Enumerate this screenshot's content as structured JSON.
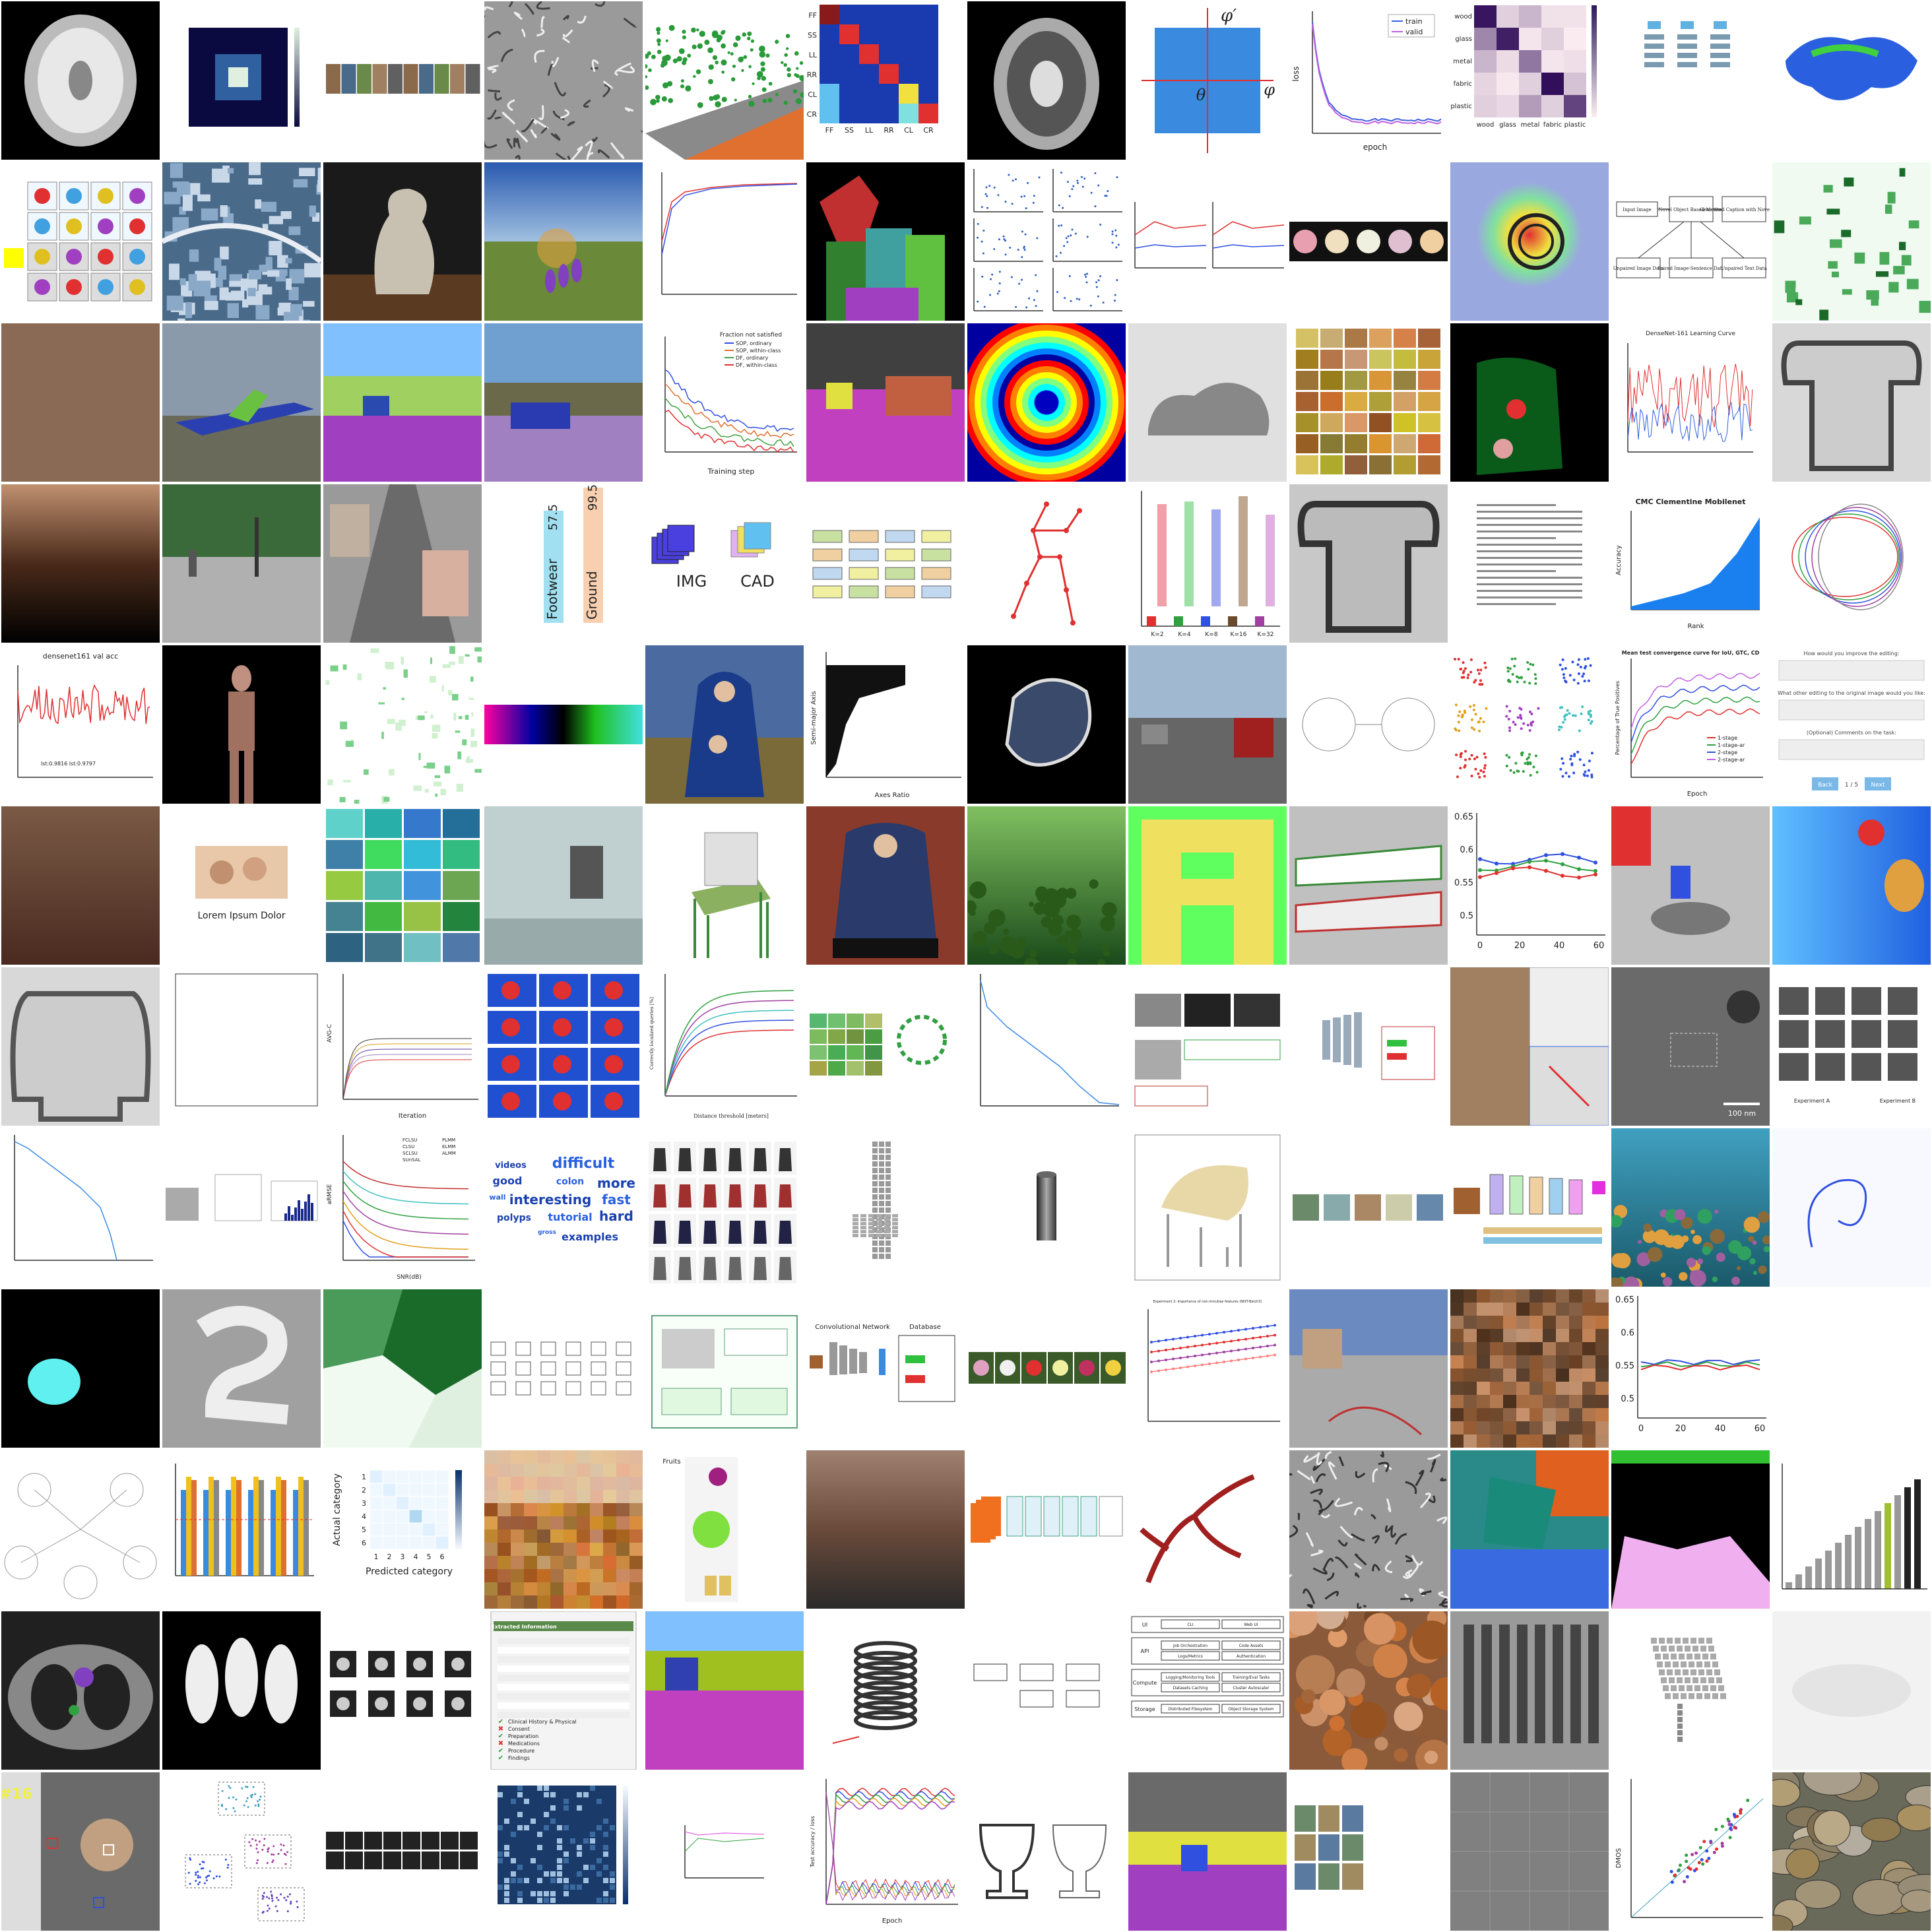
{
  "grid": {
    "columns": 12,
    "rows": 12
  },
  "tiles": [
    {
      "kind": "brain-mri-segmented",
      "bg": "#000000"
    },
    {
      "kind": "heatmap-small",
      "bg": "#ffffff"
    },
    {
      "kind": "image-strip",
      "bg": "#ffffff"
    },
    {
      "kind": "texture-gray",
      "bg": "#9a9a9a"
    },
    {
      "kind": "point-cloud-street",
      "bg": "#ffffff"
    },
    {
      "kind": "confusion-matrix",
      "bg": "#ffffff",
      "labels": [
        "FF",
        "SS",
        "LL",
        "RR",
        "CL",
        "CR"
      ]
    },
    {
      "kind": "brain-mri",
      "bg": "#000000"
    },
    {
      "kind": "axis-diagram",
      "bg": "#ffffff",
      "labels": [
        "φ′",
        "θ",
        "φ"
      ]
    },
    {
      "kind": "loss-curve",
      "bg": "#ffffff",
      "legend": [
        "train",
        "valid"
      ],
      "xlabel": "epoch",
      "ylabel": "loss"
    },
    {
      "kind": "confusion-matrix-materials",
      "bg": "#ffffff",
      "labels": [
        "wood",
        "glass",
        "metal",
        "fabric",
        "plastic"
      ]
    },
    {
      "kind": "diagram-small",
      "bg": "#ffffff"
    },
    {
      "kind": "3d-blob-blue",
      "bg": "#ffffff"
    },
    {
      "kind": "medical-panels",
      "bg": "#ffffff"
    },
    {
      "kind": "aerial-city",
      "bg": "#4a6a8a"
    },
    {
      "kind": "statue-photo",
      "bg": "#1a1a1a"
    },
    {
      "kind": "landscape-flower",
      "bg": "#5a8ad0"
    },
    {
      "kind": "rank-curve",
      "bg": "#ffffff"
    },
    {
      "kind": "segmentation-people",
      "bg": "#000000"
    },
    {
      "kind": "scatter-grid",
      "bg": "#ffffff"
    },
    {
      "kind": "line-plots-pair",
      "bg": "#ffffff"
    },
    {
      "kind": "flower-strip",
      "bg": "#ffffff"
    },
    {
      "kind": "heatmap-overlay",
      "bg": "#9aa8e0"
    },
    {
      "kind": "flowchart",
      "bg": "#ffffff",
      "labels": [
        "Input Image",
        "Novel Object Based Method",
        "Generated Caption with Novel Object",
        "Unpaired Image Data",
        "Paired Image-Sentence Data",
        "Unpaired Text Data"
      ]
    },
    {
      "kind": "green-blobs",
      "bg": "#f0faf0"
    },
    {
      "kind": "brown-solid",
      "bg": "#8a6a55"
    },
    {
      "kind": "airplane-photo",
      "bg": "#7a8a9a"
    },
    {
      "kind": "segmentation-street",
      "bg": "#80c0ff"
    },
    {
      "kind": "segmentation-street-2",
      "bg": "#70a0d0"
    },
    {
      "kind": "training-curves",
      "bg": "#ffffff",
      "title": "Fraction not satisfied",
      "legend": [
        "SOP, ordinary",
        "SOP, within-class",
        "DF, ordinary",
        "DF, within-class"
      ],
      "xlabel": "Training step"
    },
    {
      "kind": "segmentation-street-3",
      "bg": "#404040"
    },
    {
      "kind": "concentric-rings",
      "bg": "#0000a0"
    },
    {
      "kind": "shoe-blur",
      "bg": "#e0e0e0"
    },
    {
      "kind": "food-grid",
      "bg": "#ffffff"
    },
    {
      "kind": "segmentation-dark",
      "bg": "#000000"
    },
    {
      "kind": "learning-curve",
      "bg": "#ffffff",
      "title": "DenseNet-161 Learning Curve"
    },
    {
      "kind": "gray-shirt",
      "bg": "#d8d8d8"
    },
    {
      "kind": "blur-brown",
      "bg": "#000000"
    },
    {
      "kind": "street-photo",
      "bg": "#6a8a5a"
    },
    {
      "kind": "render-street",
      "bg": "#9a9a9a"
    },
    {
      "kind": "vertical-bars",
      "bg": "#ffffff",
      "labels": [
        "Footwear",
        "Ground"
      ],
      "values": [
        "57.5",
        "99.5"
      ]
    },
    {
      "kind": "img-cad",
      "bg": "#ffffff",
      "labels": [
        "IMG",
        "CAD"
      ]
    },
    {
      "kind": "architecture-diagram",
      "bg": "#ffffff"
    },
    {
      "kind": "pose-skeleton",
      "bg": "#ffffff"
    },
    {
      "kind": "bar-chart-k",
      "bg": "#ffffff",
      "labels": [
        "K=2",
        "K=4",
        "K=8",
        "K=16",
        "K=32"
      ]
    },
    {
      "kind": "gray-shirt-2",
      "bg": "#c8c8c8"
    },
    {
      "kind": "paper-page",
      "bg": "#ffffff"
    },
    {
      "kind": "area-chart",
      "bg": "#ffffff",
      "title": "CMC Clementine Mobilenet",
      "xlabel": "Rank",
      "ylabel": "Accuracy"
    },
    {
      "kind": "circles-sketch",
      "bg": "#ffffff"
    },
    {
      "kind": "val-acc-plot",
      "bg": "#ffffff",
      "title": "densenet161 val acc",
      "note": "lst:0.9816 lst:0.9797"
    },
    {
      "kind": "body-scan",
      "bg": "#000000"
    },
    {
      "kind": "green-sparse",
      "bg": "#ffffff"
    },
    {
      "kind": "colorful-strip",
      "bg": "#ffffff"
    },
    {
      "kind": "painting-madonna",
      "bg": "#3a5a8a"
    },
    {
      "kind": "scatter-axes",
      "bg": "#ffffff",
      "xlabel": "Axes Ratio",
      "ylabel": "Semi-major Axis"
    },
    {
      "kind": "object-mask",
      "bg": "#000000"
    },
    {
      "kind": "road-photo",
      "bg": "#8aa0c0"
    },
    {
      "kind": "diagram-identities",
      "bg": "#ffffff"
    },
    {
      "kind": "tsne-clusters",
      "bg": "#ffffff"
    },
    {
      "kind": "convergence-curves",
      "bg": "#ffffff",
      "title": "Mean test convergence curve for IoU, GTC, CD",
      "legend": [
        "1-stage",
        "1-stage-ar",
        "2-stage",
        "2-stage-ar"
      ],
      "xlabel": "Epoch",
      "ylabel": "Percentage of True Positives"
    },
    {
      "kind": "form-ui",
      "bg": "#ffffff",
      "labels": [
        "How would you improve the editing:",
        "What other editing to the original image would you like:",
        "(Optional) Comments on the task:",
        "Back",
        "1 / 5",
        "Next"
      ]
    },
    {
      "kind": "brown-gradient",
      "bg": "#6a4a3a"
    },
    {
      "kind": "photo-couple",
      "bg": "#ffffff",
      "caption": "Lorem Ipsum Dolor"
    },
    {
      "kind": "image-grid-nature",
      "bg": "#ffffff"
    },
    {
      "kind": "train-photo",
      "bg": "#c0d0d0"
    },
    {
      "kind": "chair-green",
      "bg": "#ffffff"
    },
    {
      "kind": "painting-madonna-2",
      "bg": "#8a3a2a"
    },
    {
      "kind": "underwater-green",
      "bg": "#2a6a2a"
    },
    {
      "kind": "letter-a-heatmap",
      "bg": "#60ff60"
    },
    {
      "kind": "planes-photo",
      "bg": "#c0c0c0"
    },
    {
      "kind": "line-error-plot",
      "bg": "#ffffff",
      "yticks": [
        "0.65",
        "0.6",
        "0.55",
        "0.5"
      ],
      "xticks": [
        "0",
        "20",
        "40",
        "60"
      ]
    },
    {
      "kind": "render-scene",
      "bg": "#c0c0c0"
    },
    {
      "kind": "depth-map",
      "bg": "#30a0ff"
    },
    {
      "kind": "sweater-blur",
      "bg": "#d8d8d8"
    },
    {
      "kind": "empty-plot",
      "bg": "#ffffff"
    },
    {
      "kind": "avg-c-plot",
      "bg": "#ffffff",
      "xlabel": "Iteration",
      "ylabel": "AVG-C"
    },
    {
      "kind": "heatmap-panels",
      "bg": "#ffffff"
    },
    {
      "kind": "localization-curves",
      "bg": "#ffffff",
      "xlabel": "Distance threshold [meters]",
      "ylabel": "Correctly localized queries [%]"
    },
    {
      "kind": "bird-grid",
      "bg": "#ffffff"
    },
    {
      "kind": "decay-plot",
      "bg": "#ffffff"
    },
    {
      "kind": "photo-panels",
      "bg": "#ffffff"
    },
    {
      "kind": "network-diagram",
      "bg": "#ffffff"
    },
    {
      "kind": "figure-panels",
      "bg": "#ffffff"
    },
    {
      "kind": "microscopy",
      "bg": "#707070",
      "scale": "100 nm"
    },
    {
      "kind": "experiment-panels",
      "bg": "#ffffff",
      "labels": [
        "Experiment A",
        "Experiment B"
      ]
    },
    {
      "kind": "decay-plot-2",
      "bg": "#ffffff"
    },
    {
      "kind": "small-panels",
      "bg": "#ffffff"
    },
    {
      "kind": "rmse-plot",
      "bg": "#ffffff",
      "xlabel": "SNR(dB)",
      "ylabel": "aRMSE",
      "legend": [
        "FCLSU",
        "CLSU",
        "SCLSU",
        "SUnSAL",
        "PLMM",
        "ELMM",
        "ALMM"
      ]
    },
    {
      "kind": "word-cloud",
      "bg": "#ffffff",
      "words": [
        "videos",
        "difficult",
        "good",
        "colon",
        "more",
        "wall",
        "interesting",
        "fast",
        "polyps",
        "tutorial",
        "hard",
        "gross",
        "examples"
      ]
    },
    {
      "kind": "fashion-grid",
      "bg": "#ffffff"
    },
    {
      "kind": "voxel-chair",
      "bg": "#ffffff"
    },
    {
      "kind": "cylinder",
      "bg": "#ffffff"
    },
    {
      "kind": "chair-render",
      "bg": "#ffffff"
    },
    {
      "kind": "image-pipeline",
      "bg": "#ffffff"
    },
    {
      "kind": "pipeline-diagram",
      "bg": "#ffffff"
    },
    {
      "kind": "coral-reef",
      "bg": "#2a8aaa"
    },
    {
      "kind": "3d-spiral",
      "bg": "#f8f8ff"
    },
    {
      "kind": "cyan-blob",
      "bg": "#000000"
    },
    {
      "kind": "digit-blur",
      "bg": "#a0a0a0"
    },
    {
      "kind": "green-patches",
      "bg": "#ffffff"
    },
    {
      "kind": "sketch-grid",
      "bg": "#ffffff"
    },
    {
      "kind": "framework-diagram",
      "bg": "#ffffff"
    },
    {
      "kind": "cnn-database",
      "bg": "#ffffff",
      "labels": [
        "Convolutional Network",
        "Database"
      ]
    },
    {
      "kind": "flower-row",
      "bg": "#ffffff"
    },
    {
      "kind": "rank-plot",
      "bg": "#ffffff",
      "title": "Experiment 2: Importance of non-minutiae features (NIST-Batch3)"
    },
    {
      "kind": "outdoor-photo",
      "bg": "#a0a0a0"
    },
    {
      "kind": "horse-pixel",
      "bg": "#806040"
    },
    {
      "kind": "line-error-plot-2",
      "bg": "#ffffff",
      "yticks": [
        "0.65",
        "0.6",
        "0.55",
        "0.5"
      ],
      "xticks": [
        "0",
        "20",
        "40",
        "60"
      ]
    },
    {
      "kind": "empty-space",
      "bg": "#ffffff"
    },
    {
      "kind": "graph-circles",
      "bg": "#ffffff"
    },
    {
      "kind": "bar-chart-groups",
      "bg": "#ffffff"
    },
    {
      "kind": "confusion-small",
      "bg": "#ffffff",
      "xlabel": "Predicted category",
      "ylabel": "Actual category",
      "xticks": [
        "1",
        "2",
        "3",
        "4",
        "5",
        "6"
      ],
      "yticks": [
        "1",
        "2",
        "3",
        "4",
        "5",
        "6"
      ]
    },
    {
      "kind": "house-pixel",
      "bg": "#f0d0a0"
    },
    {
      "kind": "fruits-diagram",
      "bg": "#ffffff",
      "title": "Fruits"
    },
    {
      "kind": "brown-blur",
      "bg": "#8a6a5a"
    },
    {
      "kind": "pipeline-colored",
      "bg": "#ffffff"
    },
    {
      "kind": "vessels",
      "bg": "#ffffff"
    },
    {
      "kind": "texture-gray-2",
      "bg": "#9a9a9a"
    },
    {
      "kind": "segmentation-scene",
      "bg": "#2a8a8a"
    },
    {
      "kind": "mask-dark",
      "bg": "#000000"
    },
    {
      "kind": "bar-3d",
      "bg": "#ffffff"
    },
    {
      "kind": "ct-scan",
      "bg": "#202020"
    },
    {
      "kind": "thermal-blobs",
      "bg": "#000000"
    },
    {
      "kind": "epoch-grid",
      "bg": "#ffffff"
    },
    {
      "kind": "report-ui",
      "bg": "#ffffff",
      "title": "Extracted Information",
      "items": [
        "Clinical History & Physical",
        "Consent",
        "Preparation",
        "Medications",
        "Procedure",
        "Findings"
      ]
    },
    {
      "kind": "segmentation-street-4",
      "bg": "#80c0ff"
    },
    {
      "kind": "coil-3d",
      "bg": "#ffffff"
    },
    {
      "kind": "block-diagram",
      "bg": "#ffffff"
    },
    {
      "kind": "system-stack",
      "bg": "#ffffff",
      "labels": [
        "UI",
        "CLI",
        "Web UI",
        "API",
        "Job Orchestration",
        "Code Assets",
        "Logs/Metrics",
        "Authentication",
        "Compute",
        "Logging/Monitoring Tools",
        "Training/Eval Tasks",
        "Datasets Caching",
        "Cluster Autoscaler",
        "Storage",
        "Distributed Filesystem",
        "Object Storage System"
      ]
    },
    {
      "kind": "texture-warm",
      "bg": "#8a5a3a"
    },
    {
      "kind": "grill-photo",
      "bg": "#9a9a9a"
    },
    {
      "kind": "voxel-3d",
      "bg": "#ffffff"
    },
    {
      "kind": "white-blur",
      "bg": "#f2f2f2"
    },
    {
      "kind": "tracking-photo",
      "bg": "#6a6a6a",
      "label": "#16"
    },
    {
      "kind": "3d-clusters",
      "bg": "#ffffff"
    },
    {
      "kind": "frames-strip",
      "bg": "#ffffff"
    },
    {
      "kind": "matrix-heatmap",
      "bg": "#ffffff"
    },
    {
      "kind": "tiny-plot",
      "bg": "#ffffff"
    },
    {
      "kind": "accuracy-epochs",
      "bg": "#ffffff",
      "xlabel": "Epoch",
      "ylabel": "Test accuracy / loss"
    },
    {
      "kind": "trophies",
      "bg": "#ffffff"
    },
    {
      "kind": "segmentation-street-5",
      "bg": "#80c0ff"
    },
    {
      "kind": "thumb-grid",
      "bg": "#ffffff"
    },
    {
      "kind": "gray-grid",
      "bg": "#808080"
    },
    {
      "kind": "scatter-dmos",
      "bg": "#ffffff",
      "ylabel": "DMOS"
    },
    {
      "kind": "wall-rocks",
      "bg": "#6a6a5a"
    }
  ]
}
